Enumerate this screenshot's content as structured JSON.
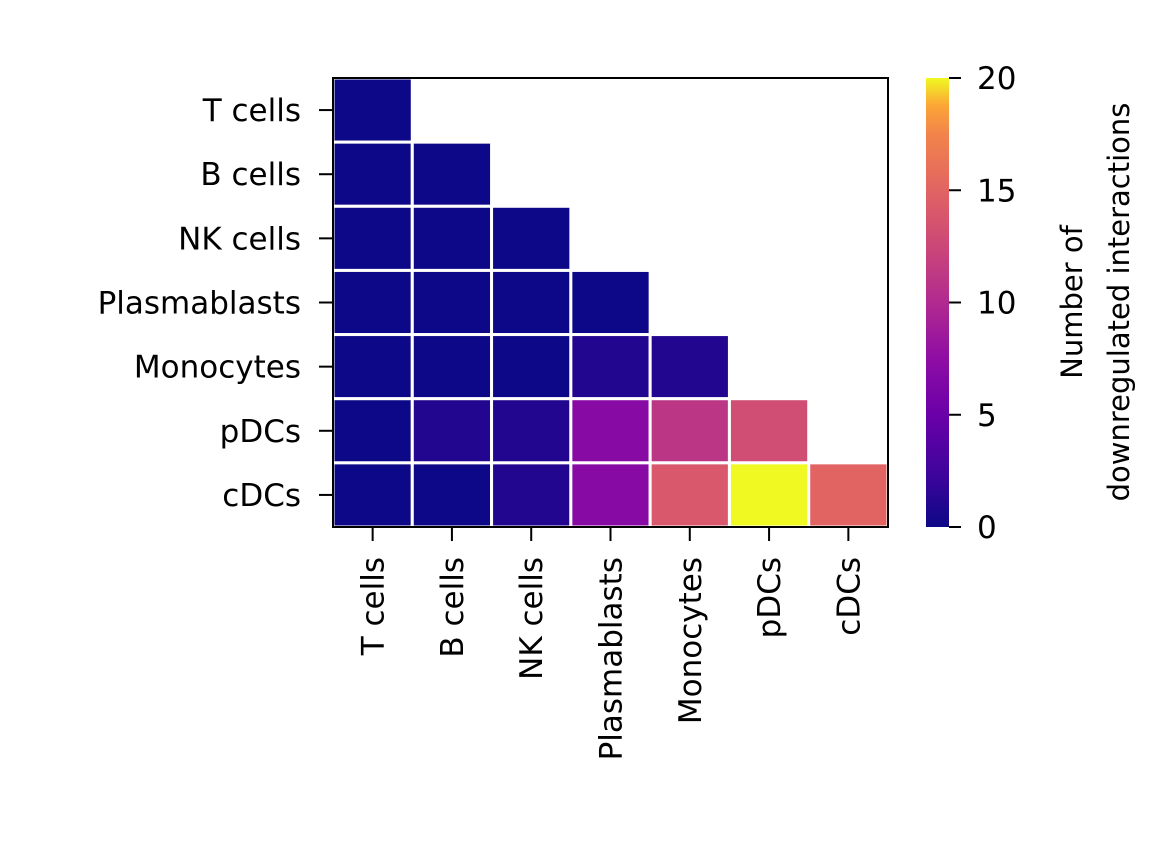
{
  "chart_data": {
    "type": "heatmap",
    "title": "",
    "xlabel": "",
    "ylabel": "",
    "categories": [
      "T cells",
      "B cells",
      "NK cells",
      "Plasmablasts",
      "Monocytes",
      "pDCs",
      "cDCs"
    ],
    "rows": [
      "T cells",
      "B cells",
      "NK cells",
      "Plasmablasts",
      "Monocytes",
      "pDCs",
      "cDCs"
    ],
    "columns": [
      "T cells",
      "B cells",
      "NK cells",
      "Plasmablasts",
      "Monocytes",
      "pDCs",
      "cDCs"
    ],
    "values": [
      [
        0,
        null,
        null,
        null,
        null,
        null,
        null
      ],
      [
        0,
        0,
        null,
        null,
        null,
        null,
        null
      ],
      [
        0,
        0,
        0,
        null,
        null,
        null,
        null
      ],
      [
        0,
        0,
        0,
        0,
        null,
        null,
        null
      ],
      [
        0,
        0,
        0,
        1,
        1,
        null,
        null
      ],
      [
        0,
        1,
        1,
        7,
        11,
        13,
        null
      ],
      [
        0,
        0,
        1,
        7,
        14,
        20,
        15
      ]
    ],
    "colorbar": {
      "label_lines": [
        "Number of",
        "downregulated interactions"
      ],
      "min": 0,
      "max": 20,
      "ticks": [
        0,
        5,
        10,
        15,
        20
      ],
      "colormap": "plasma"
    },
    "grid": false,
    "legend": "colorbar-right"
  }
}
